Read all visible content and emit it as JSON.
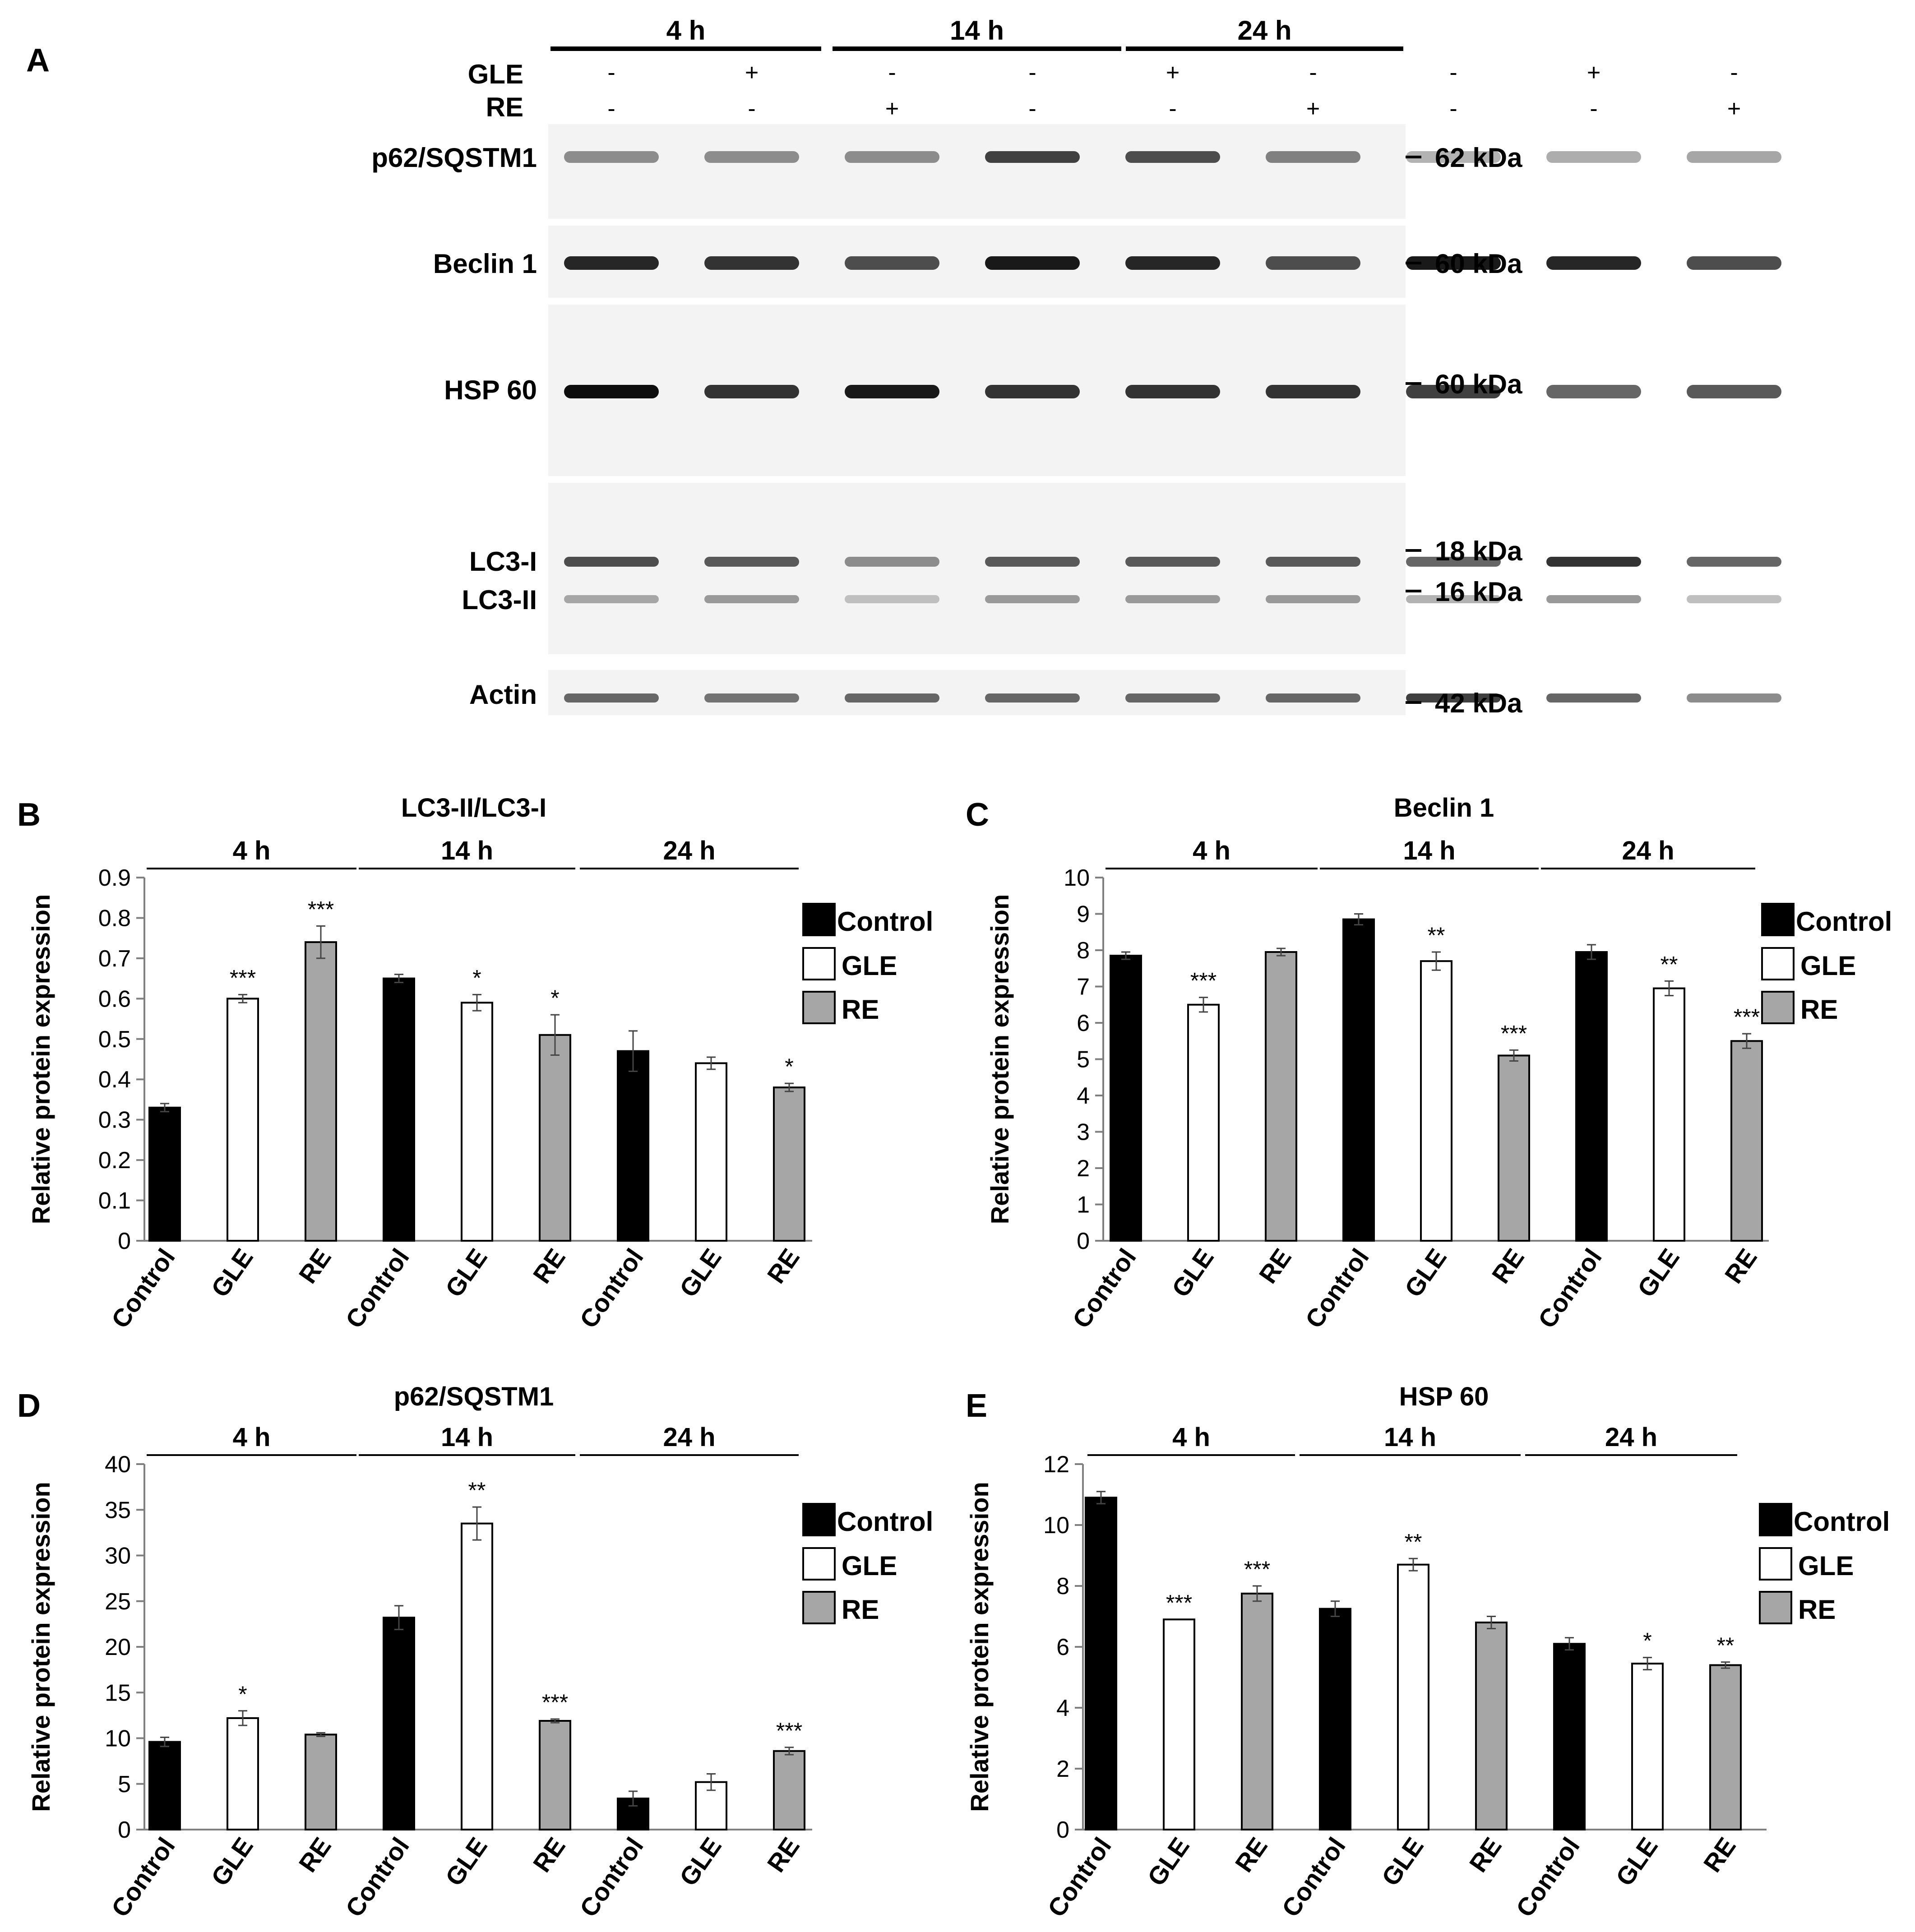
{
  "colors": {
    "control": "#000000",
    "gle": "#ffffff",
    "re": "#a6a6a6",
    "axis": "#7f7f7f"
  },
  "blot": {
    "panel_letter": "A",
    "time_labels": [
      "4 h",
      "14 h",
      "24 h"
    ],
    "gle_label": "GLE",
    "re_label": "RE",
    "gle_signs": [
      "-",
      "+",
      "-",
      "-",
      "+",
      "-",
      "-",
      "+",
      "-"
    ],
    "re_signs": [
      "-",
      "-",
      "+",
      "-",
      "-",
      "+",
      "-",
      "-",
      "+"
    ],
    "proteins": [
      "p62/SQSTM1",
      "Beclin 1",
      "HSP 60",
      "LC3-I",
      "LC3-II",
      "Actin"
    ],
    "markers": [
      "62 kDa",
      "60 kDa",
      "60 kDa",
      "18 kDa",
      "16 kDa",
      "42 kDa"
    ],
    "band_intensity": {
      "p62": [
        0.45,
        0.45,
        0.45,
        0.75,
        0.7,
        0.5,
        0.3,
        0.32,
        0.35
      ],
      "beclin": [
        0.85,
        0.8,
        0.7,
        0.9,
        0.85,
        0.7,
        0.9,
        0.85,
        0.7
      ],
      "hsp": [
        0.95,
        0.8,
        0.9,
        0.8,
        0.8,
        0.8,
        0.75,
        0.6,
        0.65
      ],
      "lc3i": [
        0.7,
        0.65,
        0.45,
        0.65,
        0.65,
        0.65,
        0.6,
        0.8,
        0.6
      ],
      "lc3ii": [
        0.35,
        0.4,
        0.25,
        0.4,
        0.4,
        0.4,
        0.3,
        0.4,
        0.25
      ],
      "actin": [
        0.6,
        0.55,
        0.6,
        0.6,
        0.6,
        0.6,
        0.75,
        0.6,
        0.45
      ]
    }
  },
  "chart_data": [
    {
      "panel": "B",
      "type": "bar",
      "title": "LC3-II/LC3-I",
      "ylabel": "Relative protein expression",
      "ylim": [
        0,
        0.9
      ],
      "yticks": [
        "0",
        "0.1",
        "0.2",
        "0.3",
        "0.4",
        "0.5",
        "0.6",
        "0.7",
        "0.8",
        "0.9"
      ],
      "groups": [
        "4 h",
        "14 h",
        "24 h"
      ],
      "categories": [
        "Control",
        "GLE",
        "RE",
        "Control",
        "GLE",
        "RE",
        "Control",
        "GLE",
        "RE"
      ],
      "values": [
        0.33,
        0.6,
        0.74,
        0.65,
        0.59,
        0.51,
        0.47,
        0.44,
        0.38
      ],
      "errors": [
        0.01,
        0.01,
        0.04,
        0.01,
        0.02,
        0.05,
        0.05,
        0.015,
        0.01
      ],
      "significance": [
        "",
        "***",
        "***",
        "",
        "*",
        "*",
        "",
        "",
        "*"
      ],
      "legend": [
        "Control",
        "GLE",
        "RE"
      ]
    },
    {
      "panel": "C",
      "type": "bar",
      "title": "Beclin 1",
      "ylabel": "Relative protein expression",
      "ylim": [
        0,
        10
      ],
      "yticks": [
        "0",
        "1",
        "2",
        "3",
        "4",
        "5",
        "6",
        "7",
        "8",
        "9",
        "10"
      ],
      "groups": [
        "4 h",
        "14 h",
        "24 h"
      ],
      "categories": [
        "Control",
        "GLE",
        "RE",
        "Control",
        "GLE",
        "RE",
        "Control",
        "GLE",
        "RE"
      ],
      "values": [
        7.85,
        6.5,
        7.95,
        8.85,
        7.7,
        5.1,
        7.95,
        6.95,
        5.5
      ],
      "errors": [
        0.1,
        0.2,
        0.1,
        0.15,
        0.25,
        0.15,
        0.2,
        0.2,
        0.2
      ],
      "significance": [
        "",
        "***",
        "",
        "",
        "**",
        "***",
        "",
        "**",
        "***"
      ],
      "legend": [
        "Control",
        "GLE",
        "RE"
      ]
    },
    {
      "panel": "D",
      "type": "bar",
      "title": "p62/SQSTM1",
      "ylabel": "Relative protein expression",
      "ylim": [
        0,
        40
      ],
      "yticks": [
        "0",
        "5",
        "10",
        "15",
        "20",
        "25",
        "30",
        "35",
        "40"
      ],
      "groups": [
        "4 h",
        "14 h",
        "24 h"
      ],
      "categories": [
        "Control",
        "GLE",
        "RE",
        "Control",
        "GLE",
        "RE",
        "Control",
        "GLE",
        "RE"
      ],
      "values": [
        9.6,
        12.2,
        10.4,
        23.2,
        33.5,
        11.9,
        3.4,
        5.2,
        8.6
      ],
      "errors": [
        0.5,
        0.8,
        0.2,
        1.3,
        1.8,
        0.2,
        0.8,
        0.9,
        0.4
      ],
      "significance": [
        "",
        "*",
        "",
        "",
        "**",
        "***",
        "",
        "",
        "***"
      ],
      "legend": [
        "Control",
        "GLE",
        "RE"
      ]
    },
    {
      "panel": "E",
      "type": "bar",
      "title": "HSP 60",
      "ylabel": "Relative protein expression",
      "ylim": [
        0,
        12
      ],
      "yticks": [
        "0",
        "2",
        "4",
        "6",
        "8",
        "10",
        "12"
      ],
      "groups": [
        "4 h",
        "14 h",
        "24 h"
      ],
      "categories": [
        "Control",
        "GLE",
        "RE",
        "Control",
        "GLE",
        "RE",
        "Control",
        "GLE",
        "RE"
      ],
      "values": [
        10.9,
        6.9,
        7.75,
        7.25,
        8.7,
        6.8,
        6.1,
        5.45,
        5.4
      ],
      "errors": [
        0.2,
        0.0,
        0.25,
        0.25,
        0.2,
        0.2,
        0.2,
        0.2,
        0.1
      ],
      "significance": [
        "",
        "***",
        "***",
        "",
        "**",
        "",
        "",
        "*",
        "**"
      ],
      "legend": [
        "Control",
        "GLE",
        "RE"
      ]
    }
  ]
}
